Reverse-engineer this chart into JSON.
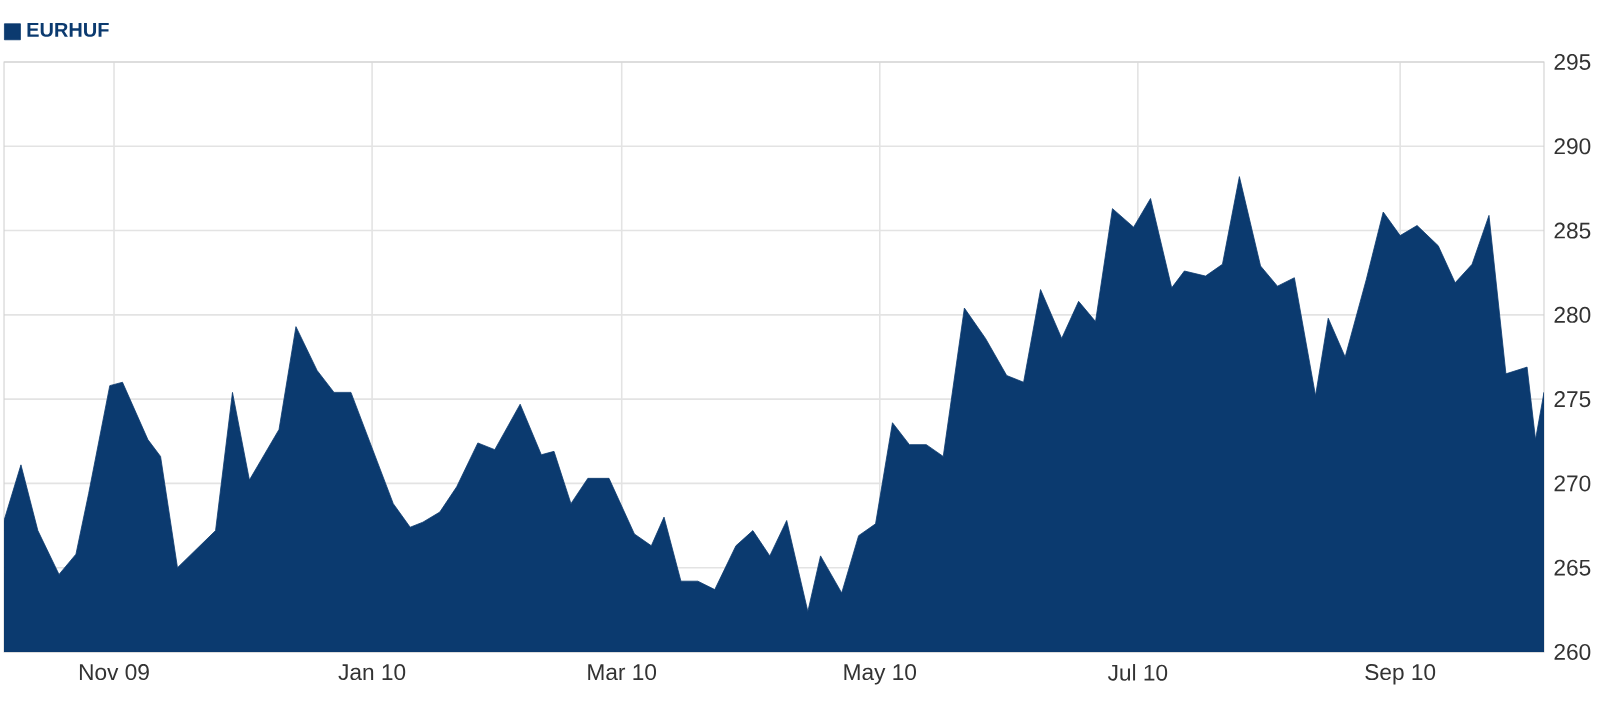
{
  "chart_data": {
    "type": "area",
    "legend": "top left",
    "grid": true,
    "xlim": [
      "2009-10-06",
      "2010-10-05"
    ],
    "xticks": [
      {
        "value": "2009-11-01",
        "label": "Nov 09"
      },
      {
        "value": "2010-01-01",
        "label": "Jan 10"
      },
      {
        "value": "2010-03-01",
        "label": "Mar 10"
      },
      {
        "value": "2010-05-01",
        "label": "May 10"
      },
      {
        "value": "2010-07-01",
        "label": "Jul 10"
      },
      {
        "value": "2010-09-01",
        "label": "Sep 10"
      }
    ],
    "ylim": [
      260,
      295
    ],
    "yticks": [
      260,
      265,
      270,
      275,
      280,
      285,
      290,
      295
    ],
    "x": [
      "2009-10-06",
      "2009-10-10",
      "2009-10-14",
      "2009-10-19",
      "2009-10-23",
      "2009-10-26",
      "2009-10-31",
      "2009-11-03",
      "2009-11-09",
      "2009-11-12",
      "2009-11-16",
      "2009-11-25",
      "2009-11-29",
      "2009-12-03",
      "2009-12-10",
      "2009-12-14",
      "2009-12-19",
      "2009-12-23",
      "2009-12-27",
      "2010-01-06",
      "2010-01-10",
      "2010-01-13",
      "2010-01-17",
      "2010-01-21",
      "2010-01-26",
      "2010-01-30",
      "2010-02-05",
      "2010-02-10",
      "2010-02-13",
      "2010-02-17",
      "2010-02-21",
      "2010-02-26",
      "2010-03-04",
      "2010-03-08",
      "2010-03-11",
      "2010-03-15",
      "2010-03-19",
      "2010-03-23",
      "2010-03-28",
      "2010-04-01",
      "2010-04-05",
      "2010-04-09",
      "2010-04-14",
      "2010-04-17",
      "2010-04-22",
      "2010-04-26",
      "2010-04-30",
      "2010-05-04",
      "2010-05-08",
      "2010-05-12",
      "2010-05-16",
      "2010-05-21",
      "2010-05-26",
      "2010-05-31",
      "2010-06-04",
      "2010-06-08",
      "2010-06-13",
      "2010-06-17",
      "2010-06-21",
      "2010-06-25",
      "2010-06-30",
      "2010-07-04",
      "2010-07-09",
      "2010-07-12",
      "2010-07-17",
      "2010-07-21",
      "2010-07-25",
      "2010-07-30",
      "2010-08-03",
      "2010-08-07",
      "2010-08-12",
      "2010-08-15",
      "2010-08-19",
      "2010-08-24",
      "2010-08-28",
      "2010-09-01",
      "2010-09-05",
      "2010-09-10",
      "2010-09-14",
      "2010-09-18",
      "2010-09-22",
      "2010-09-26",
      "2010-10-01",
      "2010-10-03",
      "2010-10-05"
    ],
    "series": [
      {
        "name": "EURHUF",
        "color": "#0b3a6f",
        "values": [
          267.8,
          271.1,
          267.2,
          264.6,
          265.8,
          269.4,
          275.8,
          276.0,
          272.6,
          271.6,
          265.0,
          267.2,
          275.4,
          270.2,
          273.2,
          279.3,
          276.7,
          275.4,
          275.4,
          268.8,
          267.4,
          267.7,
          268.3,
          269.8,
          272.4,
          272.0,
          274.7,
          271.7,
          271.9,
          268.8,
          270.3,
          270.3,
          267.0,
          266.3,
          268.0,
          264.2,
          264.2,
          263.7,
          266.3,
          267.2,
          265.7,
          267.8,
          262.4,
          265.7,
          263.5,
          266.9,
          267.6,
          273.6,
          272.3,
          272.3,
          271.6,
          280.4,
          278.6,
          276.4,
          276.0,
          281.5,
          278.6,
          280.8,
          279.6,
          286.3,
          285.2,
          286.9,
          281.6,
          282.6,
          282.3,
          283.0,
          288.2,
          282.9,
          281.7,
          282.2,
          275.2,
          279.8,
          277.5,
          282.1,
          286.1,
          284.7,
          285.3,
          284.1,
          281.9,
          283.0,
          285.9,
          276.5,
          276.9,
          272.6,
          275.4
        ]
      }
    ]
  }
}
